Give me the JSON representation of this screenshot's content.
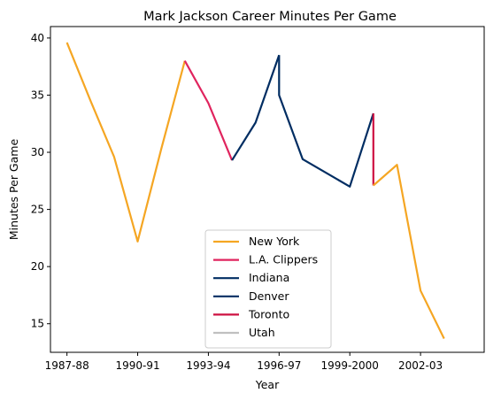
{
  "chart_data": {
    "type": "line",
    "title": "Mark Jackson  Career Minutes Per Game",
    "xlabel": "Year",
    "ylabel": "Minutes Per Game",
    "xlim": [
      -0.7,
      17.7
    ],
    "ylim": [
      12.5,
      41
    ],
    "xticks": [
      {
        "pos": 0,
        "label": "1987-88"
      },
      {
        "pos": 3,
        "label": "1990-91"
      },
      {
        "pos": 6,
        "label": "1993-94"
      },
      {
        "pos": 9,
        "label": "1996-97"
      },
      {
        "pos": 12,
        "label": "1999-2000"
      },
      {
        "pos": 15,
        "label": "2002-03"
      }
    ],
    "yticks": [
      15,
      20,
      25,
      30,
      35,
      40
    ],
    "grid": false,
    "legend_position": "bottom-center",
    "series": [
      {
        "name": "New York",
        "color": "#f5a623",
        "x": [
          0,
          1,
          2,
          3,
          4,
          5
        ],
        "y": [
          39.6,
          34.5,
          29.6,
          22.2,
          30.3,
          38.0
        ]
      },
      {
        "name": "L.A. Clippers",
        "color": "#e0245e",
        "x": [
          5,
          6,
          7
        ],
        "y": [
          38.0,
          34.3,
          29.3
        ]
      },
      {
        "name": "Indiana",
        "color": "#002d62",
        "x": [
          7,
          8,
          9
        ],
        "y": [
          29.3,
          32.6,
          38.5
        ]
      },
      {
        "name": "Denver",
        "color": "#002d62",
        "x": [
          9,
          9,
          10,
          12,
          13
        ],
        "y": [
          38.5,
          35.0,
          29.4,
          27.0,
          33.4
        ]
      },
      {
        "name": "Toronto",
        "color": "#ce1141",
        "x": [
          13,
          13
        ],
        "y": [
          33.4,
          27.1
        ]
      },
      {
        "name": "Utah",
        "color": "#c0c0c0",
        "x": [],
        "y": []
      },
      {
        "name": "New York",
        "color": "#f5a623",
        "in_legend": false,
        "x": [
          13,
          14,
          15,
          16
        ],
        "y": [
          27.1,
          28.9,
          17.9,
          13.7
        ]
      }
    ]
  }
}
